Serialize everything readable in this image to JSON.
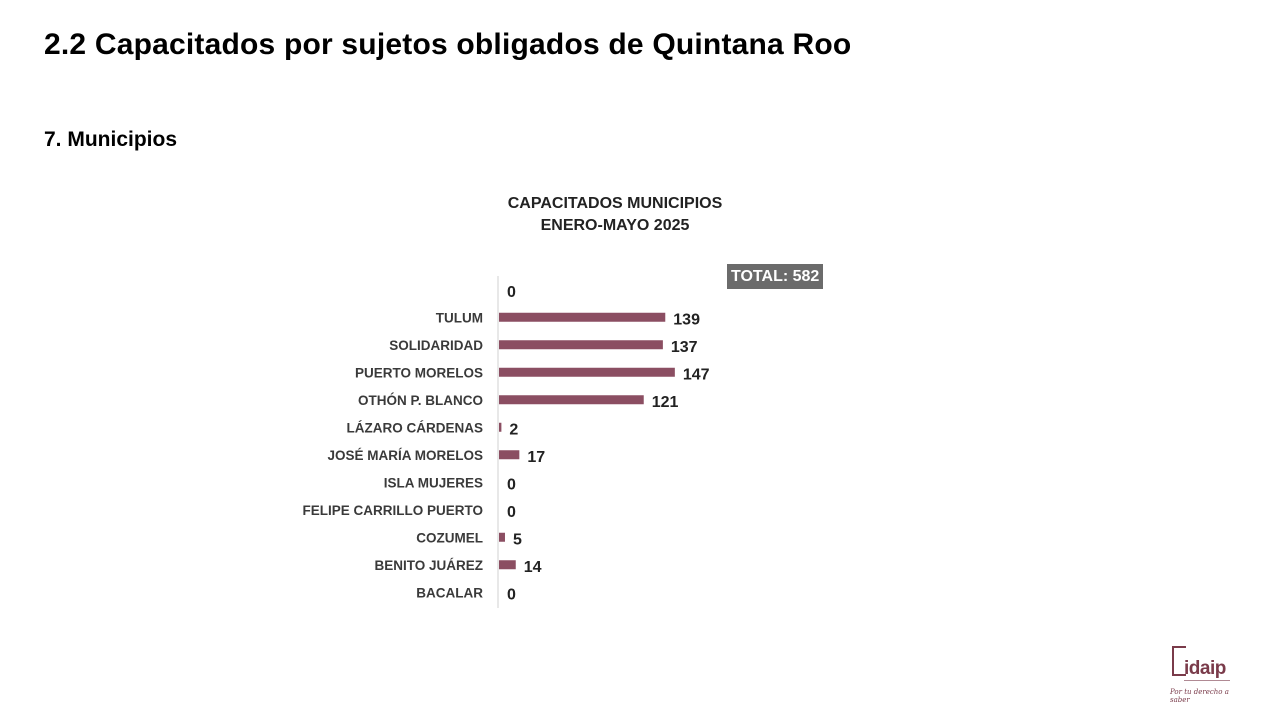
{
  "header": {
    "title": "2.2 Capacitados por sujetos obligados de Quintana Roo",
    "subtitle": "7. Municipios"
  },
  "chart_data": {
    "type": "bar",
    "orientation": "horizontal",
    "title_line1": "CAPACITADOS MUNICIPIOS",
    "title_line2": "ENERO-MAYO 2025",
    "total_badge": "TOTAL: 582",
    "categories": [
      "",
      "TULUM",
      "SOLIDARIDAD",
      "PUERTO MORELOS",
      "OTHÓN P. BLANCO",
      "LÁZARO CÁRDENAS",
      "JOSÉ MARÍA MORELOS",
      "ISLA MUJERES",
      "FELIPE CARRILLO PUERTO",
      "COZUMEL",
      "BENITO JUÁREZ",
      "BACALAR"
    ],
    "values": [
      0,
      139,
      137,
      147,
      121,
      2,
      17,
      0,
      0,
      5,
      14,
      0
    ],
    "bar_color": "#8b4e62",
    "xlim": [
      0,
      160
    ],
    "data_labels": true,
    "legend": "none"
  },
  "logo": {
    "text": "idaip",
    "slogan": "Por tu derecho a saber"
  }
}
